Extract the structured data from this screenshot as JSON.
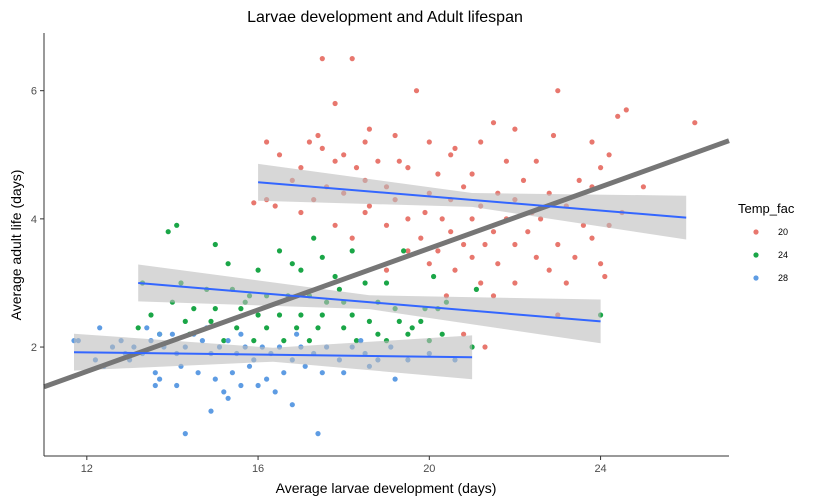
{
  "chart_data": {
    "type": "scatter",
    "title": "Larvae development and Adult lifespan",
    "xlabel": "Average larvae development (days)",
    "ylabel": "Average adult life (days)",
    "xlim": [
      11,
      27
    ],
    "ylim": [
      0.3,
      6.9
    ],
    "x_ticks": [
      12,
      16,
      20,
      24
    ],
    "y_ticks": [
      2,
      4,
      6
    ],
    "grid": false,
    "legend": {
      "title": "Temp_fac",
      "position": "right"
    },
    "series": [
      {
        "name": "20",
        "color": "#e8776e",
        "points": [
          [
            17.5,
            6.5
          ],
          [
            18.2,
            6.5
          ],
          [
            19.7,
            6.0
          ],
          [
            23.0,
            6.0
          ],
          [
            17.8,
            5.8
          ],
          [
            24.6,
            5.7
          ],
          [
            24.4,
            5.6
          ],
          [
            26.2,
            5.5
          ],
          [
            21.5,
            5.5
          ],
          [
            18.6,
            5.4
          ],
          [
            22.0,
            5.4
          ],
          [
            19.2,
            5.3
          ],
          [
            17.4,
            5.3
          ],
          [
            16.2,
            5.2
          ],
          [
            17.2,
            5.2
          ],
          [
            18.5,
            5.2
          ],
          [
            22.9,
            5.3
          ],
          [
            23.8,
            5.2
          ],
          [
            20.0,
            5.2
          ],
          [
            21.2,
            5.2
          ],
          [
            17.5,
            5.1
          ],
          [
            18.0,
            5.0
          ],
          [
            20.6,
            5.1
          ],
          [
            24.2,
            5.0
          ],
          [
            16.5,
            5.0
          ],
          [
            17.8,
            4.9
          ],
          [
            18.8,
            4.9
          ],
          [
            19.3,
            4.9
          ],
          [
            20.5,
            5.0
          ],
          [
            21.8,
            4.9
          ],
          [
            22.5,
            4.9
          ],
          [
            24.0,
            4.8
          ],
          [
            17.0,
            4.8
          ],
          [
            18.3,
            4.8
          ],
          [
            19.5,
            4.8
          ],
          [
            20.2,
            4.7
          ],
          [
            21.0,
            4.7
          ],
          [
            22.2,
            4.6
          ],
          [
            23.5,
            4.6
          ],
          [
            25.0,
            4.5
          ],
          [
            16.8,
            4.6
          ],
          [
            17.6,
            4.5
          ],
          [
            18.5,
            4.6
          ],
          [
            19.0,
            4.5
          ],
          [
            20.8,
            4.5
          ],
          [
            21.6,
            4.4
          ],
          [
            22.8,
            4.4
          ],
          [
            23.8,
            4.5
          ],
          [
            16.2,
            4.3
          ],
          [
            17.3,
            4.3
          ],
          [
            18.0,
            4.4
          ],
          [
            19.2,
            4.3
          ],
          [
            20.0,
            4.4
          ],
          [
            20.5,
            4.3
          ],
          [
            21.2,
            4.2
          ],
          [
            22.0,
            4.3
          ],
          [
            23.2,
            4.2
          ],
          [
            24.5,
            4.1
          ],
          [
            17.0,
            4.1
          ],
          [
            18.5,
            4.1
          ],
          [
            19.5,
            4.0
          ],
          [
            20.3,
            4.0
          ],
          [
            21.0,
            4.0
          ],
          [
            21.8,
            4.0
          ],
          [
            22.6,
            4.0
          ],
          [
            23.6,
            3.9
          ],
          [
            24.2,
            3.9
          ],
          [
            17.8,
            3.9
          ],
          [
            19.0,
            3.9
          ],
          [
            20.5,
            3.8
          ],
          [
            21.5,
            3.8
          ],
          [
            22.3,
            3.8
          ],
          [
            18.2,
            3.7
          ],
          [
            19.8,
            3.7
          ],
          [
            20.8,
            3.6
          ],
          [
            21.3,
            3.6
          ],
          [
            22.0,
            3.6
          ],
          [
            23.0,
            3.6
          ],
          [
            23.8,
            3.7
          ],
          [
            19.5,
            3.5
          ],
          [
            20.2,
            3.5
          ],
          [
            21.0,
            3.4
          ],
          [
            22.5,
            3.4
          ],
          [
            23.4,
            3.4
          ],
          [
            24.0,
            3.3
          ],
          [
            20.0,
            3.3
          ],
          [
            21.6,
            3.3
          ],
          [
            22.8,
            3.2
          ],
          [
            19.0,
            3.2
          ],
          [
            20.6,
            3.2
          ],
          [
            21.2,
            3.0
          ],
          [
            22.0,
            3.0
          ],
          [
            23.2,
            3.0
          ],
          [
            24.1,
            3.1
          ],
          [
            20.4,
            2.8
          ],
          [
            21.5,
            2.8
          ],
          [
            23.0,
            2.5
          ],
          [
            20.8,
            2.2
          ],
          [
            21.3,
            2.0
          ],
          [
            15.9,
            4.25
          ],
          [
            16.4,
            4.2
          ],
          [
            18.6,
            4.2
          ],
          [
            19.9,
            4.1
          ],
          [
            22.4,
            4.1
          ]
        ]
      },
      {
        "name": "24",
        "color": "#1aa647",
        "points": [
          [
            14.1,
            3.9
          ],
          [
            13.9,
            3.8
          ],
          [
            15.0,
            3.6
          ],
          [
            17.3,
            3.7
          ],
          [
            17.5,
            3.4
          ],
          [
            16.5,
            3.5
          ],
          [
            18.2,
            3.5
          ],
          [
            19.4,
            3.5
          ],
          [
            15.3,
            3.3
          ],
          [
            16.0,
            3.2
          ],
          [
            16.8,
            3.3
          ],
          [
            17.0,
            3.2
          ],
          [
            17.8,
            3.1
          ],
          [
            18.5,
            3.0
          ],
          [
            19.0,
            3.0
          ],
          [
            20.1,
            3.1
          ],
          [
            13.3,
            3.0
          ],
          [
            14.2,
            3.0
          ],
          [
            14.8,
            2.9
          ],
          [
            15.4,
            2.9
          ],
          [
            15.8,
            2.8
          ],
          [
            16.2,
            2.8
          ],
          [
            16.7,
            2.8
          ],
          [
            17.2,
            2.8
          ],
          [
            17.6,
            2.7
          ],
          [
            18.0,
            2.7
          ],
          [
            18.8,
            2.7
          ],
          [
            19.2,
            2.6
          ],
          [
            19.9,
            2.6
          ],
          [
            20.2,
            2.6
          ],
          [
            14.0,
            2.7
          ],
          [
            14.5,
            2.6
          ],
          [
            15.0,
            2.6
          ],
          [
            15.6,
            2.6
          ],
          [
            16.0,
            2.5
          ],
          [
            16.5,
            2.5
          ],
          [
            17.0,
            2.5
          ],
          [
            17.5,
            2.5
          ],
          [
            18.2,
            2.5
          ],
          [
            18.6,
            2.4
          ],
          [
            19.3,
            2.4
          ],
          [
            19.8,
            2.4
          ],
          [
            13.5,
            2.5
          ],
          [
            14.3,
            2.4
          ],
          [
            14.9,
            2.4
          ],
          [
            15.5,
            2.3
          ],
          [
            16.2,
            2.3
          ],
          [
            16.9,
            2.3
          ],
          [
            17.4,
            2.3
          ],
          [
            18.0,
            2.3
          ],
          [
            18.8,
            2.2
          ],
          [
            19.5,
            2.2
          ],
          [
            20.3,
            2.2
          ],
          [
            13.7,
            2.2
          ],
          [
            14.4,
            2.2
          ],
          [
            15.2,
            2.1
          ],
          [
            15.9,
            2.1
          ],
          [
            16.6,
            2.1
          ],
          [
            17.2,
            2.1
          ],
          [
            18.3,
            2.1
          ],
          [
            19.0,
            2.1
          ],
          [
            20.0,
            2.1
          ],
          [
            21.0,
            2.0
          ],
          [
            24.0,
            2.5
          ],
          [
            21.1,
            2.9
          ],
          [
            20.4,
            2.7
          ],
          [
            19.6,
            2.3
          ],
          [
            13.2,
            2.3
          ],
          [
            15.7,
            2.7
          ],
          [
            17.9,
            2.9
          ]
        ]
      },
      {
        "name": "28",
        "color": "#5e9ce3",
        "points": [
          [
            11.7,
            2.1
          ],
          [
            11.8,
            2.1
          ],
          [
            12.3,
            2.3
          ],
          [
            12.6,
            2.0
          ],
          [
            12.8,
            2.1
          ],
          [
            12.9,
            1.9
          ],
          [
            13.1,
            2.0
          ],
          [
            13.3,
            1.9
          ],
          [
            13.5,
            2.1
          ],
          [
            13.7,
            2.2
          ],
          [
            13.8,
            2.0
          ],
          [
            14.0,
            2.2
          ],
          [
            14.1,
            1.9
          ],
          [
            14.3,
            2.0
          ],
          [
            14.5,
            2.2
          ],
          [
            14.7,
            2.1
          ],
          [
            14.9,
            1.9
          ],
          [
            15.1,
            2.0
          ],
          [
            15.3,
            2.1
          ],
          [
            15.5,
            1.9
          ],
          [
            15.7,
            2.0
          ],
          [
            15.9,
            1.8
          ],
          [
            16.1,
            2.0
          ],
          [
            16.3,
            1.9
          ],
          [
            16.5,
            2.0
          ],
          [
            16.8,
            1.8
          ],
          [
            17.0,
            2.0
          ],
          [
            17.3,
            1.9
          ],
          [
            17.6,
            2.0
          ],
          [
            17.9,
            1.8
          ],
          [
            18.2,
            2.0
          ],
          [
            18.5,
            1.9
          ],
          [
            18.8,
            1.8
          ],
          [
            19.1,
            2.0
          ],
          [
            19.5,
            1.8
          ],
          [
            20.0,
            1.9
          ],
          [
            20.6,
            1.8
          ],
          [
            12.4,
            1.7
          ],
          [
            13.0,
            1.8
          ],
          [
            13.6,
            1.6
          ],
          [
            14.2,
            1.7
          ],
          [
            14.6,
            1.6
          ],
          [
            15.0,
            1.5
          ],
          [
            15.4,
            1.6
          ],
          [
            15.8,
            1.7
          ],
          [
            16.2,
            1.5
          ],
          [
            16.6,
            1.6
          ],
          [
            17.1,
            1.7
          ],
          [
            17.5,
            1.6
          ],
          [
            18.0,
            1.6
          ],
          [
            18.6,
            1.7
          ],
          [
            19.2,
            1.5
          ],
          [
            13.7,
            1.5
          ],
          [
            14.1,
            1.4
          ],
          [
            15.2,
            1.3
          ],
          [
            15.6,
            1.4
          ],
          [
            16.0,
            1.4
          ],
          [
            16.4,
            1.3
          ],
          [
            13.6,
            1.4
          ],
          [
            15.3,
            1.2
          ],
          [
            16.8,
            1.1
          ],
          [
            14.9,
            1.0
          ],
          [
            14.3,
            0.65
          ],
          [
            17.4,
            0.65
          ],
          [
            12.2,
            1.8
          ],
          [
            13.4,
            2.3
          ],
          [
            14.8,
            2.3
          ],
          [
            15.6,
            2.2
          ],
          [
            16.9,
            2.2
          ],
          [
            18.4,
            2.1
          ]
        ]
      }
    ],
    "fits": [
      {
        "name": "overall",
        "color": "#767676",
        "x": [
          11.0,
          27.0
        ],
        "y": [
          1.38,
          5.22
        ]
      },
      {
        "name": "20",
        "color": "#3366ff",
        "x": [
          16.0,
          26.0
        ],
        "y": [
          4.57,
          4.02
        ]
      },
      {
        "name": "24",
        "color": "#3366ff",
        "x": [
          13.2,
          24.0
        ],
        "y": [
          3.0,
          2.4
        ]
      },
      {
        "name": "28",
        "color": "#3366ff",
        "x": [
          11.7,
          21.0
        ],
        "y": [
          1.92,
          1.84
        ]
      }
    ]
  }
}
